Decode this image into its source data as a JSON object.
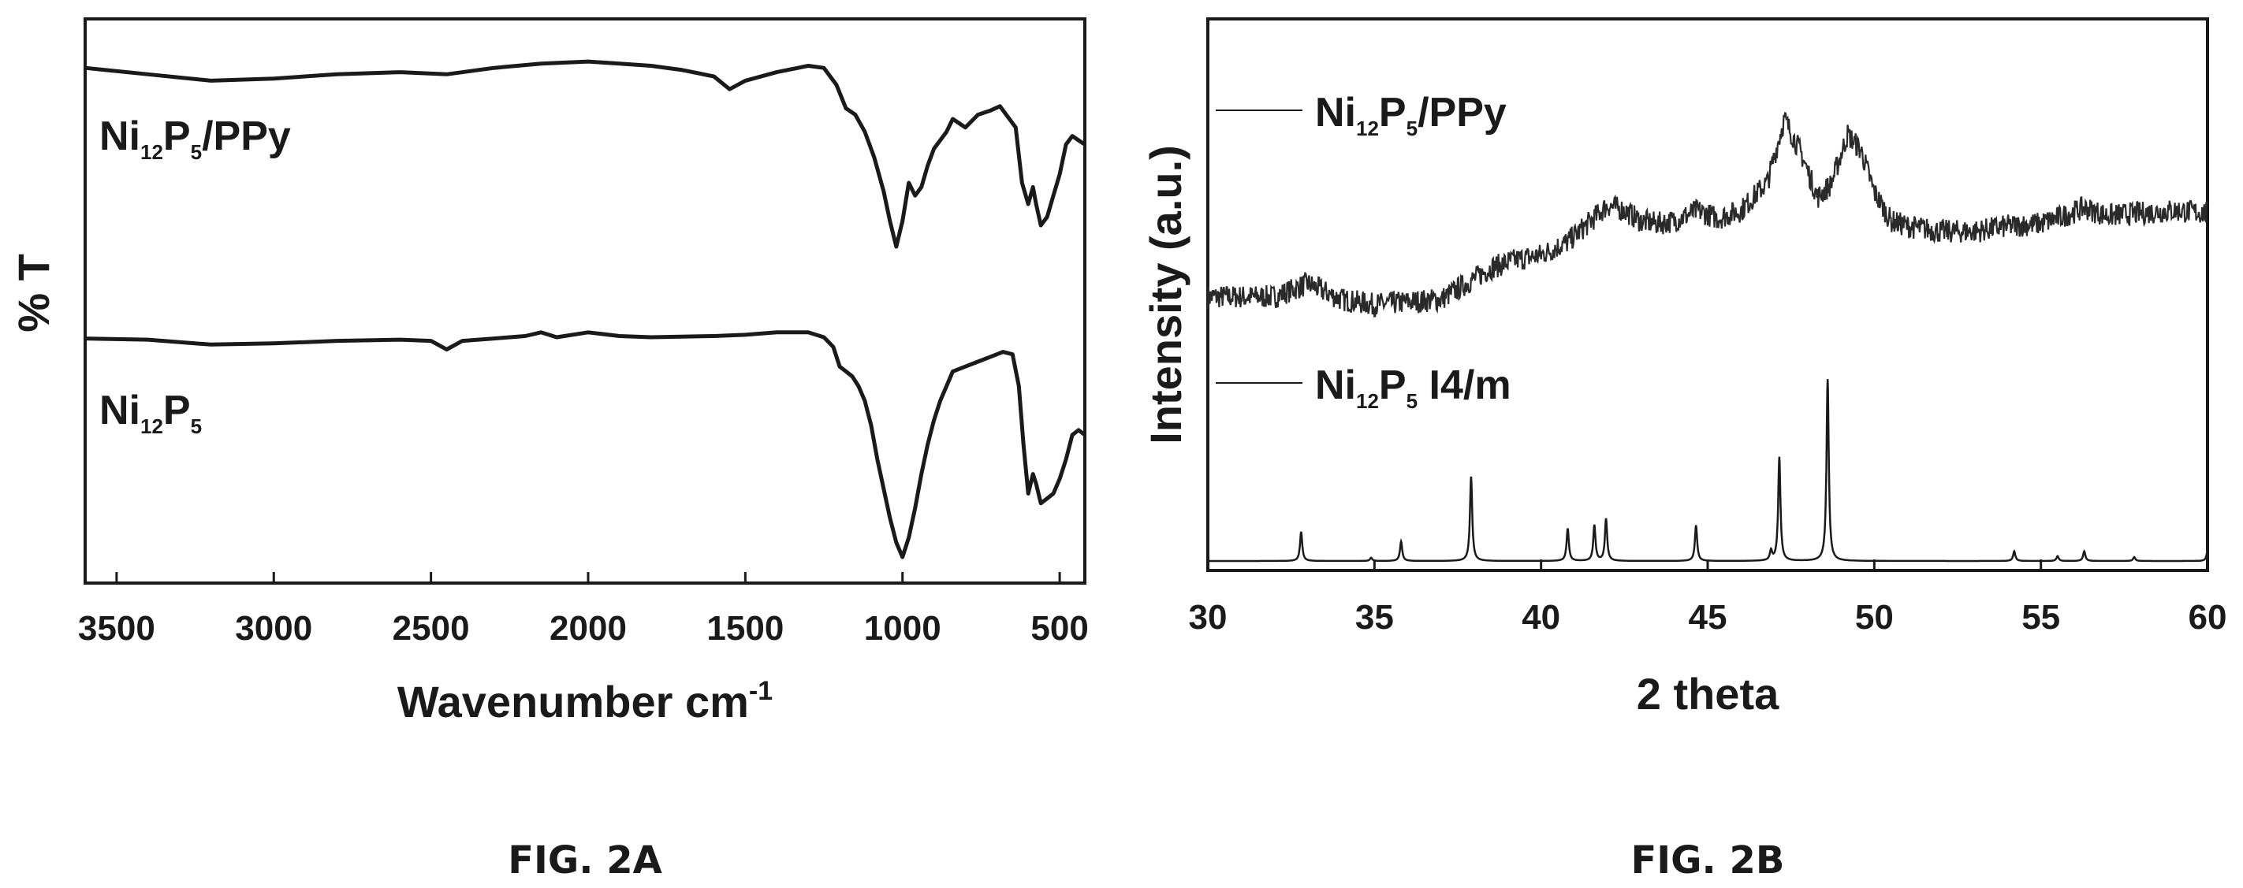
{
  "chart_data": [
    {
      "type": "line",
      "caption": "FIG. 2A",
      "xlabel": "Wavenumber cm",
      "xlabel_sup": "-1",
      "ylabel": "% T",
      "xlim": [
        3600,
        420
      ],
      "x_ticks": [
        3500,
        3000,
        2500,
        2000,
        1500,
        1000,
        500
      ],
      "series": [
        {
          "label_parts": [
            "Ni",
            "12",
            "P",
            "5",
            "/PPy"
          ],
          "offset": 1.0,
          "points": [
            [
              3600,
              0.94
            ],
            [
              3400,
              0.91
            ],
            [
              3200,
              0.88
            ],
            [
              3000,
              0.89
            ],
            [
              2800,
              0.91
            ],
            [
              2600,
              0.92
            ],
            [
              2450,
              0.91
            ],
            [
              2300,
              0.94
            ],
            [
              2150,
              0.96
            ],
            [
              2000,
              0.97
            ],
            [
              1900,
              0.96
            ],
            [
              1800,
              0.95
            ],
            [
              1700,
              0.93
            ],
            [
              1600,
              0.9
            ],
            [
              1550,
              0.84
            ],
            [
              1500,
              0.88
            ],
            [
              1400,
              0.92
            ],
            [
              1300,
              0.95
            ],
            [
              1250,
              0.94
            ],
            [
              1210,
              0.86
            ],
            [
              1180,
              0.75
            ],
            [
              1150,
              0.72
            ],
            [
              1120,
              0.64
            ],
            [
              1090,
              0.52
            ],
            [
              1060,
              0.36
            ],
            [
              1040,
              0.22
            ],
            [
              1020,
              0.1
            ],
            [
              1000,
              0.22
            ],
            [
              980,
              0.4
            ],
            [
              960,
              0.34
            ],
            [
              940,
              0.38
            ],
            [
              920,
              0.48
            ],
            [
              900,
              0.56
            ],
            [
              880,
              0.6
            ],
            [
              860,
              0.64
            ],
            [
              840,
              0.7
            ],
            [
              800,
              0.66
            ],
            [
              760,
              0.72
            ],
            [
              720,
              0.74
            ],
            [
              690,
              0.76
            ],
            [
              660,
              0.7
            ],
            [
              640,
              0.66
            ],
            [
              620,
              0.4
            ],
            [
              600,
              0.3
            ],
            [
              585,
              0.38
            ],
            [
              575,
              0.3
            ],
            [
              560,
              0.2
            ],
            [
              540,
              0.24
            ],
            [
              520,
              0.34
            ],
            [
              500,
              0.44
            ],
            [
              480,
              0.58
            ],
            [
              460,
              0.62
            ],
            [
              440,
              0.6
            ],
            [
              420,
              0.58
            ]
          ]
        },
        {
          "label_parts": [
            "Ni",
            "12",
            "P",
            "5",
            ""
          ],
          "offset": 0.0,
          "points": [
            [
              3600,
              0.995
            ],
            [
              3400,
              0.99
            ],
            [
              3200,
              0.97
            ],
            [
              3000,
              0.975
            ],
            [
              2800,
              0.985
            ],
            [
              2600,
              0.99
            ],
            [
              2500,
              0.985
            ],
            [
              2450,
              0.95
            ],
            [
              2400,
              0.985
            ],
            [
              2300,
              0.995
            ],
            [
              2200,
              1.005
            ],
            [
              2150,
              1.02
            ],
            [
              2100,
              1.0
            ],
            [
              2000,
              1.02
            ],
            [
              1900,
              1.005
            ],
            [
              1800,
              1.0
            ],
            [
              1600,
              1.005
            ],
            [
              1500,
              1.01
            ],
            [
              1400,
              1.02
            ],
            [
              1300,
              1.02
            ],
            [
              1250,
              1.0
            ],
            [
              1220,
              0.96
            ],
            [
              1200,
              0.88
            ],
            [
              1180,
              0.86
            ],
            [
              1160,
              0.84
            ],
            [
              1140,
              0.8
            ],
            [
              1120,
              0.74
            ],
            [
              1100,
              0.64
            ],
            [
              1080,
              0.5
            ],
            [
              1060,
              0.38
            ],
            [
              1040,
              0.26
            ],
            [
              1020,
              0.16
            ],
            [
              1000,
              0.1
            ],
            [
              980,
              0.18
            ],
            [
              960,
              0.3
            ],
            [
              940,
              0.44
            ],
            [
              920,
              0.56
            ],
            [
              900,
              0.66
            ],
            [
              880,
              0.74
            ],
            [
              860,
              0.8
            ],
            [
              840,
              0.86
            ],
            [
              800,
              0.88
            ],
            [
              760,
              0.9
            ],
            [
              720,
              0.92
            ],
            [
              680,
              0.94
            ],
            [
              650,
              0.93
            ],
            [
              630,
              0.8
            ],
            [
              615,
              0.56
            ],
            [
              600,
              0.36
            ],
            [
              585,
              0.44
            ],
            [
              575,
              0.4
            ],
            [
              560,
              0.32
            ],
            [
              540,
              0.34
            ],
            [
              520,
              0.36
            ],
            [
              500,
              0.42
            ],
            [
              480,
              0.5
            ],
            [
              460,
              0.6
            ],
            [
              440,
              0.62
            ],
            [
              420,
              0.6
            ]
          ]
        }
      ]
    },
    {
      "type": "line",
      "caption": "FIG. 2B",
      "xlabel": "2 theta",
      "ylabel": "Intensity (a.u.)",
      "xlim": [
        30,
        60
      ],
      "x_ticks": [
        30,
        35,
        40,
        45,
        50,
        55,
        60
      ],
      "series": [
        {
          "label_parts": [
            "Ni",
            "12",
            "P",
            "5",
            "/PPy"
          ],
          "style": "noisy",
          "points": [
            [
              30,
              0.52
            ],
            [
              31,
              0.52
            ],
            [
              32,
              0.52
            ],
            [
              33,
              0.545
            ],
            [
              33.5,
              0.53
            ],
            [
              34,
              0.515
            ],
            [
              35,
              0.505
            ],
            [
              36,
              0.51
            ],
            [
              37,
              0.515
            ],
            [
              37.5,
              0.535
            ],
            [
              38.5,
              0.575
            ],
            [
              39.2,
              0.59
            ],
            [
              40,
              0.6
            ],
            [
              40.8,
              0.625
            ],
            [
              41.5,
              0.665
            ],
            [
              42,
              0.695
            ],
            [
              42.5,
              0.685
            ],
            [
              43,
              0.665
            ],
            [
              43.5,
              0.66
            ],
            [
              44,
              0.665
            ],
            [
              44.7,
              0.685
            ],
            [
              45.3,
              0.67
            ],
            [
              46,
              0.685
            ],
            [
              46.8,
              0.74
            ],
            [
              47.3,
              0.86
            ],
            [
              47.8,
              0.795
            ],
            [
              48.3,
              0.71
            ],
            [
              48.7,
              0.735
            ],
            [
              49.2,
              0.83
            ],
            [
              49.6,
              0.8
            ],
            [
              50,
              0.72
            ],
            [
              50.5,
              0.665
            ],
            [
              51,
              0.655
            ],
            [
              52,
              0.645
            ],
            [
              53,
              0.645
            ],
            [
              54,
              0.655
            ],
            [
              55,
              0.66
            ],
            [
              55.7,
              0.675
            ],
            [
              56.3,
              0.69
            ],
            [
              57,
              0.675
            ],
            [
              58,
              0.68
            ],
            [
              59,
              0.685
            ],
            [
              60,
              0.68
            ]
          ]
        },
        {
          "label_parts": [
            "Ni",
            "12",
            "P",
            "5",
            " I4/m"
          ],
          "style": "peaks",
          "baseline": 0.0,
          "peaks": [
            [
              32.8,
              0.09
            ],
            [
              34.9,
              0.01
            ],
            [
              35.8,
              0.06
            ],
            [
              37.9,
              0.26
            ],
            [
              40.8,
              0.1
            ],
            [
              41.6,
              0.11
            ],
            [
              41.95,
              0.13
            ],
            [
              44.65,
              0.11
            ],
            [
              46.9,
              0.03
            ],
            [
              47.15,
              0.32
            ],
            [
              48.6,
              0.56
            ],
            [
              54.2,
              0.03
            ],
            [
              55.5,
              0.015
            ],
            [
              56.3,
              0.03
            ],
            [
              57.8,
              0.012
            ],
            [
              60.0,
              0.03
            ]
          ]
        }
      ]
    }
  ]
}
